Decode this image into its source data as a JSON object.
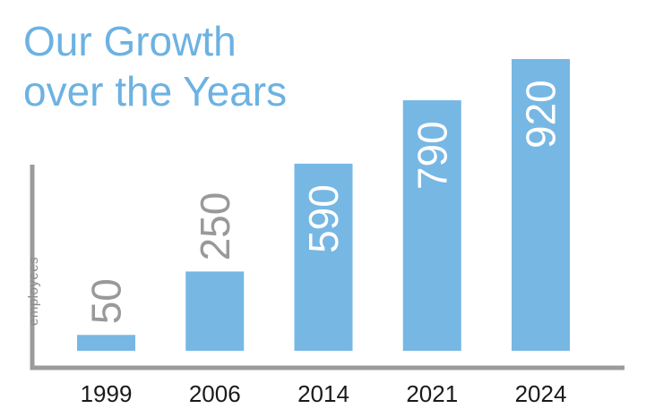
{
  "chart_data": {
    "type": "bar",
    "title_lines": [
      "Our Growth",
      "over the Years"
    ],
    "categories": [
      "1999",
      "2006",
      "2014",
      "2021",
      "2024"
    ],
    "values": [
      50,
      250,
      590,
      790,
      920
    ],
    "ylabel": "employees",
    "ylim": [
      0,
      920
    ],
    "grid": false,
    "legend": "none",
    "colors": {
      "bar": "#77b7e4",
      "title": "#6cb2e2",
      "axis": "#9b9b9b",
      "label_outside": "#999999",
      "label_inside": "#ffffff"
    }
  }
}
